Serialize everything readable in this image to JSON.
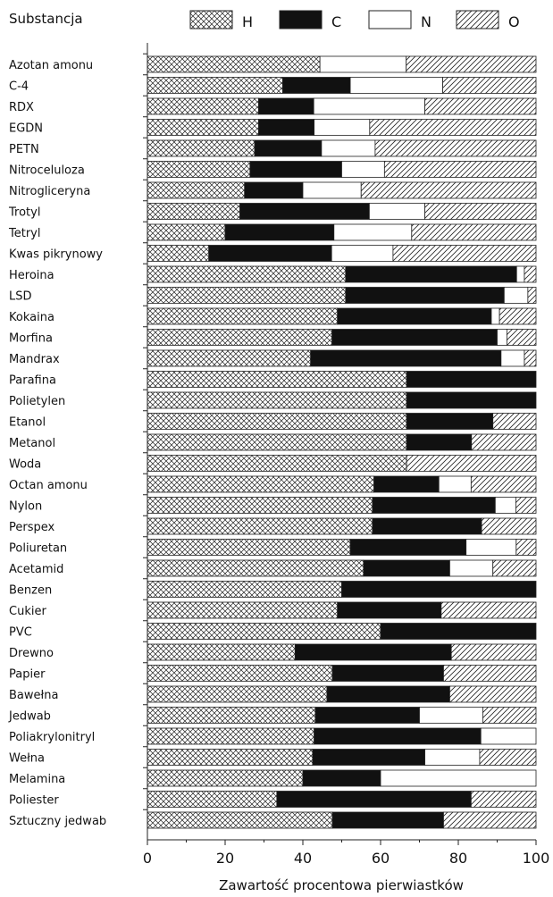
{
  "chart_data": {
    "type": "bar",
    "stacked": true,
    "orientation": "horizontal",
    "title": "Substancja",
    "xlabel": "Zawartość procentowa pierwiastków",
    "xlim": [
      0,
      100
    ],
    "xticks": [
      "0",
      "20",
      "40",
      "60",
      "80",
      "100"
    ],
    "legend_position": "top",
    "legend": [
      "H",
      "C",
      "N",
      "O"
    ],
    "categories": [
      "Azotan amonu",
      "C-4",
      "RDX",
      "EGDN",
      "PETN",
      "Nitroceluloza",
      "Nitrogliceryna",
      "Trotyl",
      "Tetryl",
      "Kwas pikrynowy",
      "Heroina",
      "LSD",
      "Kokaina",
      "Morfina",
      "Mandrax",
      "Parafina",
      "Polietylen",
      "Etanol",
      "Metanol",
      "Woda",
      "Octan amonu",
      "Nylon",
      "Perspex",
      "Poliuretan",
      "Acetamid",
      "Benzen",
      "Cukier",
      "PVC",
      "Drewno",
      "Papier",
      "Bawełna",
      "Jedwab",
      "Poliakrylonitryl",
      "Wełna",
      "Melamina",
      "Poliester",
      "Sztuczny jedwab"
    ],
    "series": [
      {
        "name": "H",
        "pattern": "crosshatch",
        "values": [
          44.4,
          34.8,
          28.6,
          28.6,
          27.6,
          26.4,
          25.0,
          23.8,
          20.0,
          15.8,
          51.0,
          51.0,
          48.9,
          47.5,
          42.0,
          66.7,
          66.7,
          66.7,
          66.7,
          66.7,
          58.3,
          57.9,
          57.9,
          52.2,
          55.6,
          50.0,
          48.9,
          60.0,
          38.0,
          47.6,
          46.2,
          43.2,
          42.9,
          42.5,
          40.0,
          33.3,
          47.6
        ]
      },
      {
        "name": "C",
        "pattern": "solid",
        "values": [
          0,
          17.4,
          14.2,
          14.3,
          17.2,
          23.6,
          15.0,
          33.3,
          28.0,
          31.6,
          44.0,
          40.8,
          39.6,
          42.5,
          49.0,
          33.3,
          33.3,
          22.2,
          16.7,
          0,
          16.7,
          31.6,
          28.1,
          29.8,
          22.2,
          50.0,
          26.7,
          40.0,
          40.2,
          28.6,
          31.6,
          26.8,
          42.9,
          28.9,
          20.0,
          50.0,
          28.6
        ]
      },
      {
        "name": "N",
        "pattern": "empty",
        "values": [
          22.2,
          23.8,
          28.6,
          14.3,
          13.8,
          11.0,
          15.0,
          14.3,
          20.0,
          15.8,
          2.0,
          6.1,
          2.1,
          2.5,
          6.0,
          0,
          0,
          0,
          0,
          0,
          8.3,
          5.3,
          0,
          12.9,
          11.1,
          0,
          0,
          0,
          0,
          0,
          0,
          16.3,
          14.2,
          14.1,
          40.0,
          0,
          0
        ]
      },
      {
        "name": "O",
        "pattern": "diagonal",
        "values": [
          33.4,
          24.0,
          28.6,
          42.8,
          41.4,
          39.0,
          45.0,
          28.6,
          32.0,
          36.8,
          3.0,
          2.1,
          9.4,
          7.5,
          3.0,
          0,
          0,
          11.1,
          16.6,
          33.3,
          16.7,
          5.2,
          14.0,
          5.1,
          11.1,
          0,
          24.4,
          0,
          21.8,
          23.8,
          22.2,
          13.7,
          0,
          14.5,
          0,
          16.7,
          23.8
        ]
      }
    ]
  }
}
